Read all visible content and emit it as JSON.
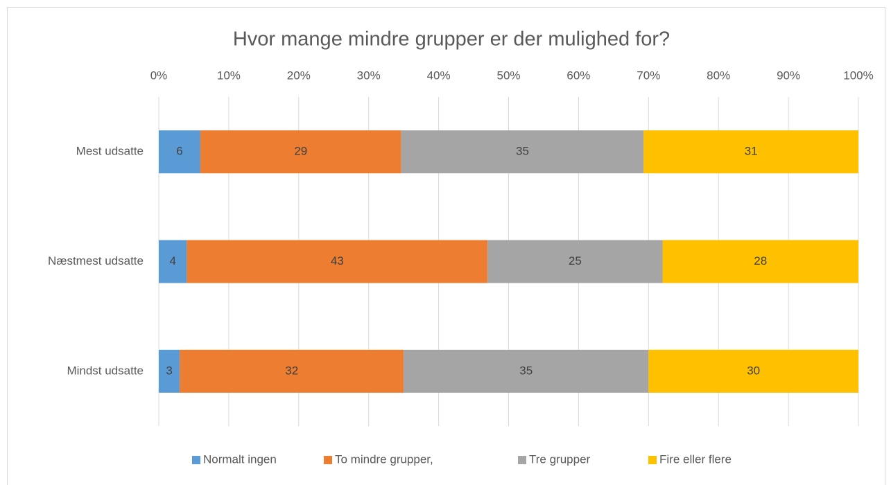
{
  "chart_data": {
    "type": "bar",
    "orientation": "horizontal",
    "stacked": "percent",
    "title": "Hvor mange mindre grupper er der mulighed for?",
    "categories": [
      "Mest udsatte",
      "Næstmest udsatte",
      "Mindst udsatte"
    ],
    "series": [
      {
        "name": "Normalt ingen",
        "color": "#5b9bd5",
        "values": [
          6,
          4,
          3
        ]
      },
      {
        "name": "To mindre grupper,",
        "color": "#ed7d31",
        "values": [
          29,
          43,
          32
        ]
      },
      {
        "name": "Tre grupper",
        "color": "#a5a5a5",
        "values": [
          35,
          25,
          35
        ]
      },
      {
        "name": "Fire eller flere",
        "color": "#ffc000",
        "values": [
          31,
          28,
          30
        ]
      }
    ],
    "xlim": [
      0,
      100
    ],
    "xticks": [
      {
        "value": 0,
        "label": "0%"
      },
      {
        "value": 10,
        "label": "10%"
      },
      {
        "value": 20,
        "label": "20%"
      },
      {
        "value": 30,
        "label": "30%"
      },
      {
        "value": 40,
        "label": "40%"
      },
      {
        "value": 50,
        "label": "50%"
      },
      {
        "value": 60,
        "label": "60%"
      },
      {
        "value": 70,
        "label": "70%"
      },
      {
        "value": 80,
        "label": "80%"
      },
      {
        "value": 90,
        "label": "90%"
      },
      {
        "value": 100,
        "label": "100%"
      }
    ],
    "grid": true,
    "legend": "bottom"
  }
}
